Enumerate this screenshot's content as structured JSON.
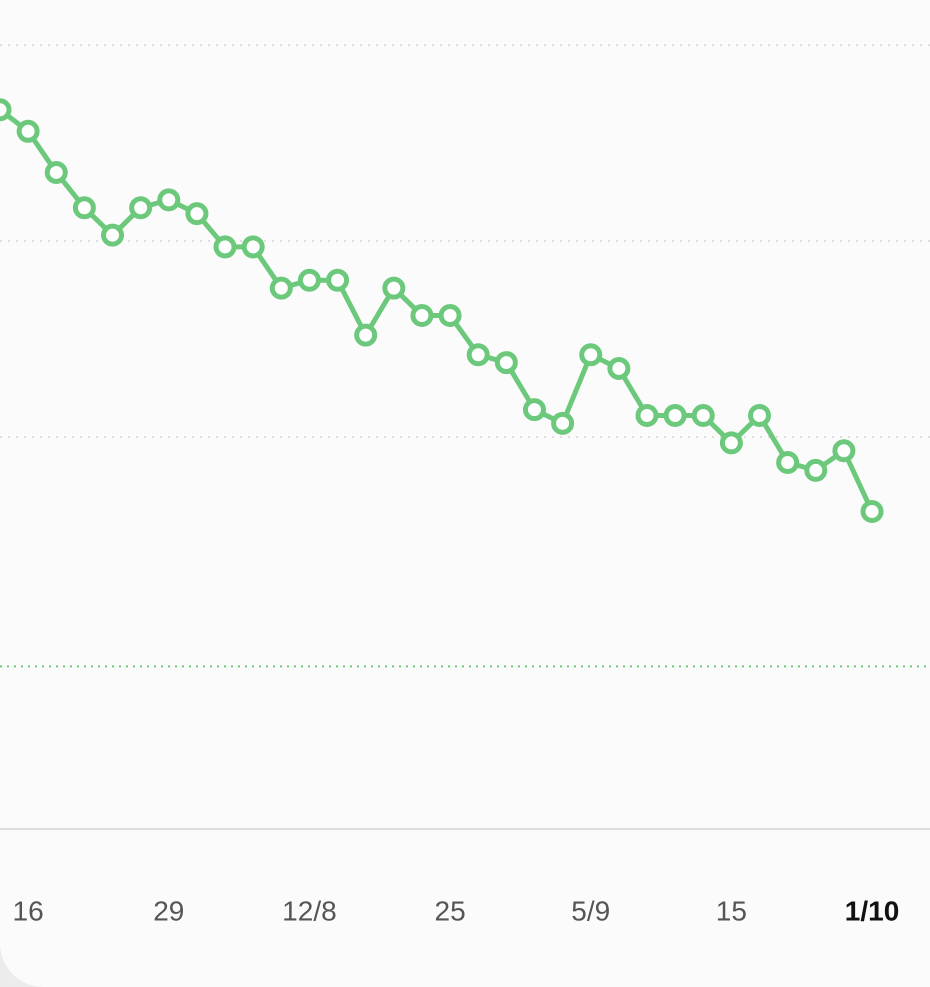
{
  "chart_data": {
    "type": "line",
    "categories": [
      null,
      "16",
      null,
      null,
      null,
      null,
      "29",
      null,
      null,
      null,
      null,
      "12/8",
      null,
      null,
      null,
      null,
      "25",
      null,
      null,
      null,
      null,
      "5/9",
      null,
      null,
      null,
      null,
      "15",
      null,
      null,
      null,
      null,
      "1/10"
    ],
    "values": [
      36.7,
      35.6,
      33.5,
      31.7,
      30.3,
      31.7,
      32.1,
      31.4,
      29.7,
      29.7,
      27.6,
      28.0,
      28.0,
      25.2,
      27.6,
      26.2,
      26.2,
      24.2,
      23.8,
      21.4,
      20.7,
      24.2,
      23.5,
      21.1,
      21.1,
      21.1,
      19.7,
      21.1,
      18.7,
      18.3,
      19.3,
      16.2
    ],
    "color": "#6cc97c",
    "ylim": [
      0,
      42.3
    ],
    "yticks": [
      20,
      30,
      40
    ],
    "grid": true,
    "target": 8.3
  }
}
